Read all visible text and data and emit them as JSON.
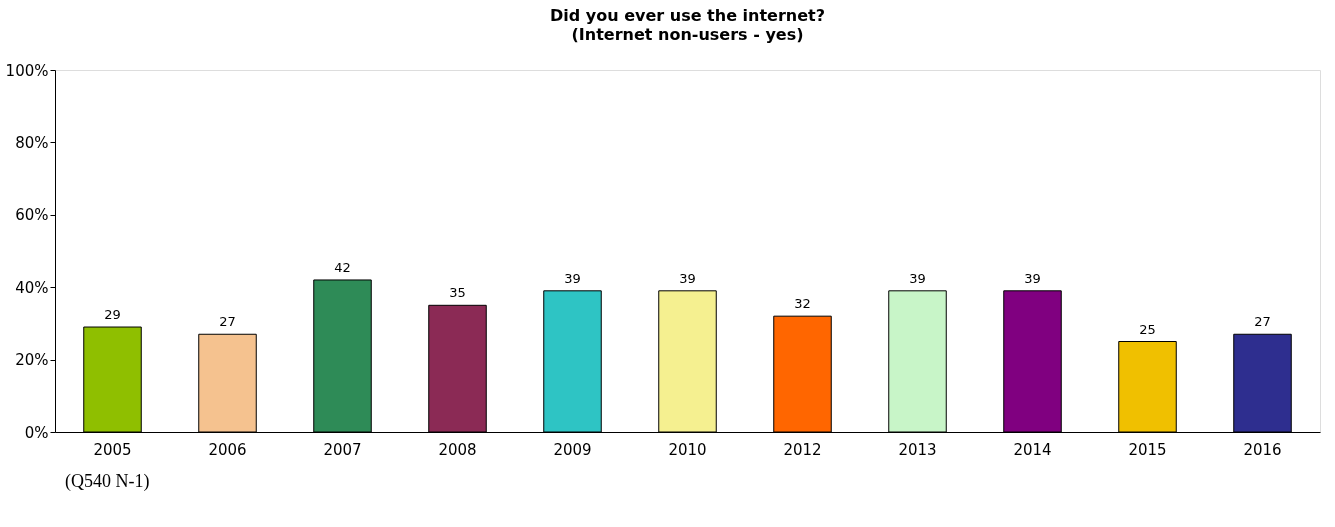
{
  "chart_data": {
    "type": "bar",
    "title": "Did you ever use the internet?",
    "subtitle": "(Internet non-users - yes)",
    "categories": [
      "2005",
      "2006",
      "2007",
      "2008",
      "2009",
      "2010",
      "2012",
      "2013",
      "2014",
      "2015",
      "2016"
    ],
    "values": [
      29,
      27,
      42,
      35,
      39,
      39,
      32,
      39,
      39,
      25,
      27
    ],
    "colors": [
      "#8fbf00",
      "#f5c28f",
      "#2e8b57",
      "#8b2a55",
      "#2ec4c4",
      "#f5f090",
      "#ff6600",
      "#c8f5c8",
      "#800080",
      "#f0c000",
      "#2e2e8f"
    ],
    "ylim": [
      0,
      100
    ],
    "yticks": [
      {
        "value": 0,
        "label": "0%"
      },
      {
        "value": 20,
        "label": "20%"
      },
      {
        "value": 40,
        "label": "40%"
      },
      {
        "value": 60,
        "label": "60%"
      },
      {
        "value": 80,
        "label": "80%"
      },
      {
        "value": 100,
        "label": "100%"
      }
    ],
    "data_labels": true,
    "grid": false,
    "annotations": [
      "(Q540 N-1)"
    ]
  }
}
